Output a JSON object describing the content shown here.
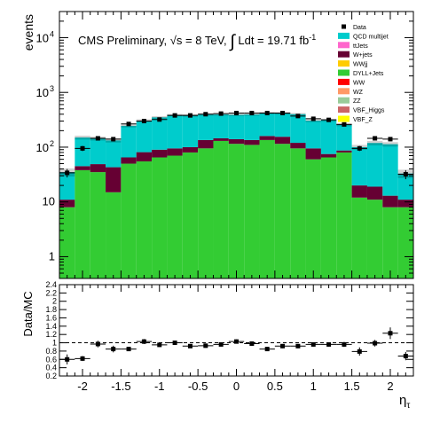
{
  "chart_data": {
    "type": "bar",
    "stacked": true,
    "bin_edges": [
      -2.3,
      -2.1,
      -1.9,
      -1.7,
      -1.5,
      -1.3,
      -1.1,
      -0.9,
      -0.7,
      -0.5,
      -0.3,
      -0.1,
      0.1,
      0.3,
      0.5,
      0.7,
      0.9,
      1.1,
      1.3,
      1.5,
      1.7,
      1.9,
      2.1,
      2.3
    ],
    "xlim": [
      -2.3,
      2.3
    ],
    "xlabel": "η_τ",
    "xlabel_main": "η",
    "xlabel_sub": "τ",
    "x_ticks": [
      "-2",
      "-1.5",
      "-1",
      "-0.5",
      "0",
      "0.5",
      "1",
      "1.5",
      "2"
    ],
    "x_tick_values": [
      -2,
      -1.5,
      -1,
      -0.5,
      0,
      0.5,
      1,
      1.5,
      2
    ],
    "upper": {
      "ylabel": "events",
      "yscale": "log",
      "ylim": [
        0.4,
        30000
      ],
      "y_ticks": [
        {
          "value": 1,
          "label": "1"
        },
        {
          "value": 10,
          "label": "10"
        },
        {
          "value": 100,
          "base": "10",
          "exp": "2"
        },
        {
          "value": 1000,
          "base": "10",
          "exp": "3"
        },
        {
          "value": 10000,
          "base": "10",
          "exp": "4"
        }
      ],
      "series": [
        {
          "name": "DYLL+Jets",
          "color": "#33cc33",
          "values": [
            8,
            38,
            35,
            15,
            50,
            55,
            65,
            70,
            80,
            95,
            130,
            115,
            110,
            135,
            115,
            95,
            60,
            65,
            80,
            12,
            11,
            8,
            8
          ]
        },
        {
          "name": "W+jets",
          "color": "#660033",
          "values": [
            3,
            7,
            14,
            28,
            15,
            26,
            25,
            25,
            20,
            40,
            15,
            25,
            25,
            25,
            40,
            25,
            35,
            10,
            7,
            8,
            8,
            5,
            3
          ]
        },
        {
          "name": "QCD multijet",
          "color": "#00cccc",
          "values": [
            24,
            105,
            95,
            90,
            180,
            225,
            260,
            290,
            280,
            260,
            250,
            250,
            260,
            260,
            260,
            280,
            210,
            235,
            170,
            80,
            100,
            100,
            22
          ]
        }
      ],
      "legend_only_series": [
        {
          "name": "ttJets",
          "color": "#ff66cc"
        },
        {
          "name": "WWjj",
          "color": "#ffcc00"
        },
        {
          "name": "WW",
          "color": "#ff0000"
        },
        {
          "name": "WZ",
          "color": "#ff9966"
        },
        {
          "name": "ZZ",
          "color": "#99cc99"
        },
        {
          "name": "VBF_Higgs",
          "color": "#cc6666"
        },
        {
          "name": "VBF_Z",
          "color": "#ffff00"
        }
      ],
      "data": {
        "name": "Data",
        "values": [
          34,
          95,
          145,
          140,
          265,
          300,
          320,
          380,
          380,
          400,
          410,
          420,
          420,
          420,
          420,
          370,
          330,
          315,
          260,
          95,
          145,
          140,
          32
        ],
        "errors": [
          6,
          10,
          12,
          12,
          16,
          17,
          18,
          19,
          19,
          20,
          20,
          20,
          20,
          20,
          20,
          19,
          18,
          18,
          16,
          10,
          12,
          12,
          6
        ]
      },
      "legend": [
        "Data",
        "QCD multijet",
        "ttJets",
        "W+jets",
        "WWjj",
        "DYLL+Jets",
        "WW",
        "WZ",
        "ZZ",
        "VBF_Higgs",
        "VBF_Z"
      ],
      "legend_placement": "top-right",
      "annotation": {
        "prefix": "CMS Preliminary, ",
        "sqrt": "√s",
        "mid": " = 8 TeV, ",
        "integral": "∫",
        "lumi": " Ldt = 19.71 fb",
        "exp": "-1"
      }
    },
    "lower": {
      "ylabel": "Data/MC",
      "ylim": [
        0.2,
        2.4
      ],
      "y_ticks": [
        "0.2",
        "0.4",
        "0.6",
        "0.8",
        "1",
        "1.2",
        "1.4",
        "1.6",
        "1.8",
        "2",
        "2.2",
        "2.4"
      ],
      "y_tick_values": [
        0.2,
        0.4,
        0.6,
        0.8,
        1,
        1.2,
        1.4,
        1.6,
        1.8,
        2,
        2.2,
        2.4
      ],
      "reference_line": 1.0,
      "values": [
        0.6,
        0.62,
        0.97,
        0.85,
        0.85,
        1.03,
        0.95,
        1.0,
        0.92,
        0.93,
        0.96,
        1.03,
        0.98,
        0.85,
        0.92,
        0.92,
        0.96,
        0.96,
        0.96,
        0.79,
        0.99,
        1.23,
        0.68
      ],
      "errors": [
        0.12,
        0.06,
        0.08,
        0.08,
        0.05,
        0.06,
        0.05,
        0.05,
        0.04,
        0.05,
        0.04,
        0.05,
        0.05,
        0.04,
        0.05,
        0.05,
        0.05,
        0.05,
        0.06,
        0.1,
        0.08,
        0.14,
        0.1
      ]
    }
  }
}
